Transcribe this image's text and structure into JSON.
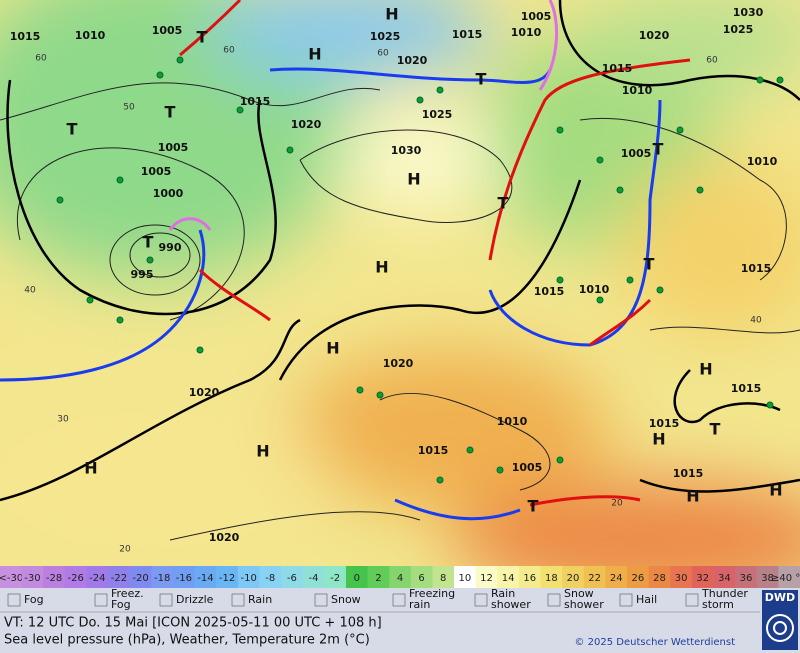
{
  "map": {
    "isobar_labels": [
      "1015",
      "1010",
      "1005",
      "1025",
      "1020",
      "1015",
      "1005",
      "1010",
      "1030",
      "1025",
      "1020",
      "1015",
      "1010",
      "1015",
      "1020",
      "1025",
      "1030",
      "1005",
      "1005",
      "1000",
      "990",
      "995",
      "1005",
      "1010",
      "1015",
      "1015",
      "1010",
      "1020",
      "1020",
      "1015",
      "1010",
      "1015",
      "1015",
      "1005",
      "1015",
      "1020"
    ],
    "pressure_centers": [
      "H",
      "H",
      "T",
      "T",
      "T",
      "T",
      "H",
      "H",
      "H",
      "H",
      "H",
      "T",
      "T",
      "T",
      "T",
      "H",
      "T",
      "H",
      "H",
      "H",
      "T"
    ],
    "temperature_labels": [
      "60",
      "60",
      "60",
      "50",
      "40",
      "40",
      "30",
      "20",
      "20",
      "60"
    ]
  },
  "scale": {
    "labels": [
      "<-30",
      "-30",
      "-28",
      "-26",
      "-24",
      "-22",
      "-20",
      "-18",
      "-16",
      "-14",
      "-12",
      "-10",
      "-8",
      "-6",
      "-4",
      "-2",
      "0",
      "2",
      "4",
      "6",
      "8",
      "10",
      "12",
      "14",
      "16",
      "18",
      "20",
      "22",
      "24",
      "26",
      "28",
      "30",
      "32",
      "34",
      "36",
      "38",
      "≥40 °C"
    ]
  },
  "legend": [
    [
      "Fog"
    ],
    [
      "Freez.",
      "Fog"
    ],
    [
      "Drizzle"
    ],
    [
      "Rain"
    ],
    [
      "Snow"
    ],
    [
      "Freezing",
      "rain"
    ],
    [
      "Rain",
      "shower"
    ],
    [
      "Snow",
      "shower"
    ],
    [
      "Hail"
    ],
    [
      "Thunder",
      "storm"
    ]
  ],
  "footer": {
    "valid_time": "VT: 12 UTC Do.  15 Mai [ICON 2025-05-11  00 UTC + 108 h]",
    "description": "Sea level pressure (hPa), Weather, Temperature 2m (°C)",
    "copyright": "© 2025 Deutscher Wetterdienst",
    "logo": "DWD"
  }
}
